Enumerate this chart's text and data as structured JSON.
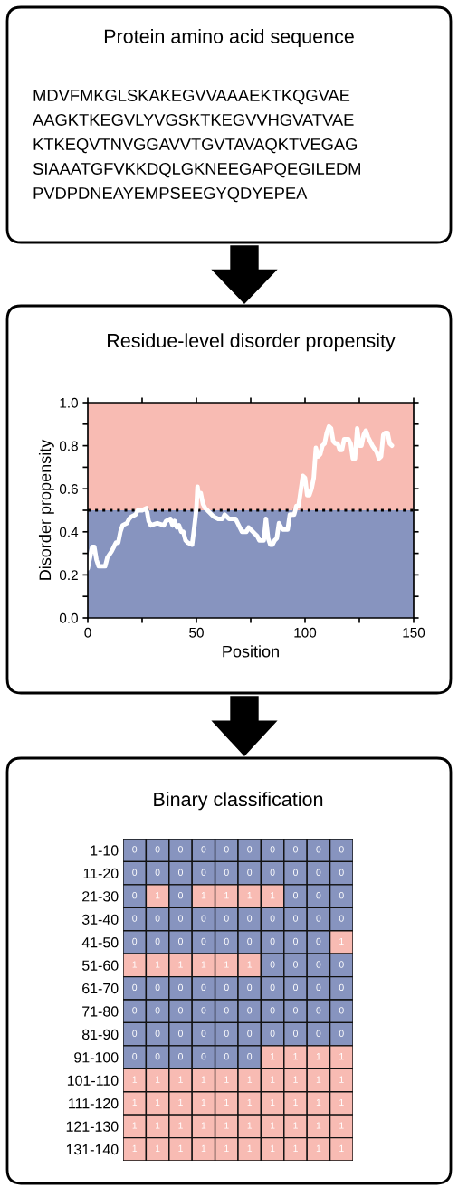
{
  "chart_data": [
    {
      "type": "other",
      "title": "Protein amino acid sequence",
      "annotations": [
        "MDVFMKGLSKAKEGVVAAAEKTKQGVAE",
        "AAGKTKEGVLYVGSKTKEGVVHGVATVAE",
        "KTKEQVTNVGGAVVTGVTAVAQKTVEGAG",
        "SIAAATGFVKKDQLGKNEEGAPQEGILEDM",
        "PVDPDNEAYEMPSEEGYQDYEPEA"
      ]
    },
    {
      "type": "line",
      "title": "Residue-level disorder propensity",
      "xlabel": "Position",
      "ylabel": "Disorder propensity",
      "xlim": [
        0,
        150
      ],
      "ylim": [
        0,
        1
      ],
      "xticks": [
        0,
        {
          "value": 25,
          "label": null
        },
        50,
        {
          "value": 75,
          "label": null
        },
        100,
        {
          "value": 125,
          "label": null
        },
        150
      ],
      "yticks": [
        {
          "value": 0,
          "label": "0.0"
        },
        {
          "value": 0.1,
          "label": null
        },
        0.2,
        {
          "value": 0.3,
          "label": null
        },
        0.4,
        {
          "value": 0.5,
          "label": null
        },
        0.6,
        {
          "value": 0.7,
          "label": null
        },
        0.8,
        {
          "value": 0.9,
          "label": null
        },
        {
          "value": 1,
          "label": "1.0"
        }
      ],
      "grid": false,
      "marker": "none",
      "line_style": "solid",
      "bands": [
        {
          "axis": "y",
          "from": 0,
          "to": 0.5,
          "color": "#8794bf"
        },
        {
          "axis": "y",
          "from": 0.5,
          "to": 1,
          "color": "#f8bbb3"
        }
      ],
      "ref_lines": [
        {
          "axis": "y",
          "value": 0.5,
          "color": "#000000",
          "line_style": "dotted"
        }
      ],
      "x": [
        0,
        2,
        3,
        4,
        5,
        8,
        9,
        11,
        12,
        13,
        14,
        15,
        16,
        18,
        19,
        20,
        22,
        23,
        25,
        27,
        28,
        29,
        32,
        35,
        36,
        38,
        39,
        40,
        41,
        42,
        43,
        44,
        45,
        46,
        48,
        49,
        50,
        50.5,
        51,
        52,
        53,
        54,
        55,
        56,
        57,
        58,
        60,
        62,
        63,
        65,
        68,
        69,
        70,
        71,
        73,
        74,
        76,
        77,
        78,
        79,
        81,
        82,
        83,
        84,
        85,
        86,
        87,
        88,
        89,
        90,
        92,
        93,
        95,
        96,
        97,
        98,
        99,
        100,
        101,
        102,
        103,
        104,
        105,
        106,
        107,
        108,
        109,
        110,
        111,
        112,
        113,
        114,
        115,
        116,
        117,
        118,
        120,
        121,
        122,
        123,
        124,
        125,
        126,
        127,
        128,
        129,
        131,
        133,
        134,
        135,
        136,
        137,
        138,
        139,
        140
      ],
      "series": [
        {
          "color": "#ffffff",
          "values": [
            0.23,
            0.33,
            0.33,
            0.27,
            0.24,
            0.24,
            0.28,
            0.31,
            0.33,
            0.35,
            0.35,
            0.4,
            0.43,
            0.44,
            0.46,
            0.47,
            0.48,
            0.5,
            0.5,
            0.51,
            0.45,
            0.43,
            0.44,
            0.43,
            0.45,
            0.46,
            0.43,
            0.45,
            0.42,
            0.43,
            0.4,
            0.4,
            0.36,
            0.35,
            0.34,
            0.42,
            0.51,
            0.61,
            0.57,
            0.58,
            0.53,
            0.51,
            0.5,
            0.49,
            0.48,
            0.47,
            0.46,
            0.46,
            0.48,
            0.46,
            0.46,
            0.44,
            0.42,
            0.4,
            0.4,
            0.42,
            0.4,
            0.39,
            0.38,
            0.36,
            0.36,
            0.46,
            0.37,
            0.34,
            0.34,
            0.36,
            0.37,
            0.44,
            0.42,
            0.41,
            0.41,
            0.48,
            0.48,
            0.52,
            0.52,
            0.59,
            0.66,
            0.65,
            0.57,
            0.57,
            0.6,
            0.65,
            0.79,
            0.75,
            0.76,
            0.8,
            0.81,
            0.86,
            0.89,
            0.88,
            0.82,
            0.81,
            0.81,
            0.78,
            0.78,
            0.83,
            0.83,
            0.81,
            0.74,
            0.74,
            0.88,
            0.8,
            0.8,
            0.85,
            0.87,
            0.84,
            0.8,
            0.77,
            0.74,
            0.75,
            0.85,
            0.86,
            0.86,
            0.81,
            0.8
          ]
        }
      ]
    },
    {
      "type": "heatmap",
      "title": "Binary classification",
      "data_labels": true,
      "colors": [
        "#8794bf",
        "#f8bbb3"
      ],
      "categories": [
        null,
        null,
        null,
        null,
        null,
        null,
        null,
        null,
        null,
        null
      ],
      "y_categories": [
        "1-10",
        "11-20",
        "21-30",
        "31-40",
        "41-50",
        "51-60",
        "61-70",
        "71-80",
        "81-90",
        "91-100",
        "101-110",
        "111-120",
        "121-130",
        "131-140"
      ],
      "cells": [
        [
          0,
          0,
          0,
          0,
          0,
          0,
          0,
          0,
          0,
          0
        ],
        [
          0,
          0,
          0,
          0,
          0,
          0,
          0,
          0,
          0,
          0
        ],
        [
          0,
          1,
          0,
          1,
          1,
          1,
          1,
          0,
          0,
          0
        ],
        [
          0,
          0,
          0,
          0,
          0,
          0,
          0,
          0,
          0,
          0
        ],
        [
          0,
          0,
          0,
          0,
          0,
          0,
          0,
          0,
          0,
          1
        ],
        [
          1,
          1,
          1,
          1,
          1,
          1,
          0,
          0,
          0,
          0
        ],
        [
          0,
          0,
          0,
          0,
          0,
          0,
          0,
          0,
          0,
          0
        ],
        [
          0,
          0,
          0,
          0,
          0,
          0,
          0,
          0,
          0,
          0
        ],
        [
          0,
          0,
          0,
          0,
          0,
          0,
          0,
          0,
          0,
          0
        ],
        [
          0,
          0,
          0,
          0,
          0,
          0,
          1,
          1,
          1,
          1
        ],
        [
          1,
          1,
          1,
          1,
          1,
          1,
          1,
          1,
          1,
          1
        ],
        [
          1,
          1,
          1,
          1,
          1,
          1,
          1,
          1,
          1,
          1
        ],
        [
          1,
          1,
          1,
          1,
          1,
          1,
          1,
          1,
          1,
          1
        ],
        [
          1,
          1,
          1,
          1,
          1,
          1,
          1,
          1,
          1,
          1
        ]
      ]
    }
  ]
}
